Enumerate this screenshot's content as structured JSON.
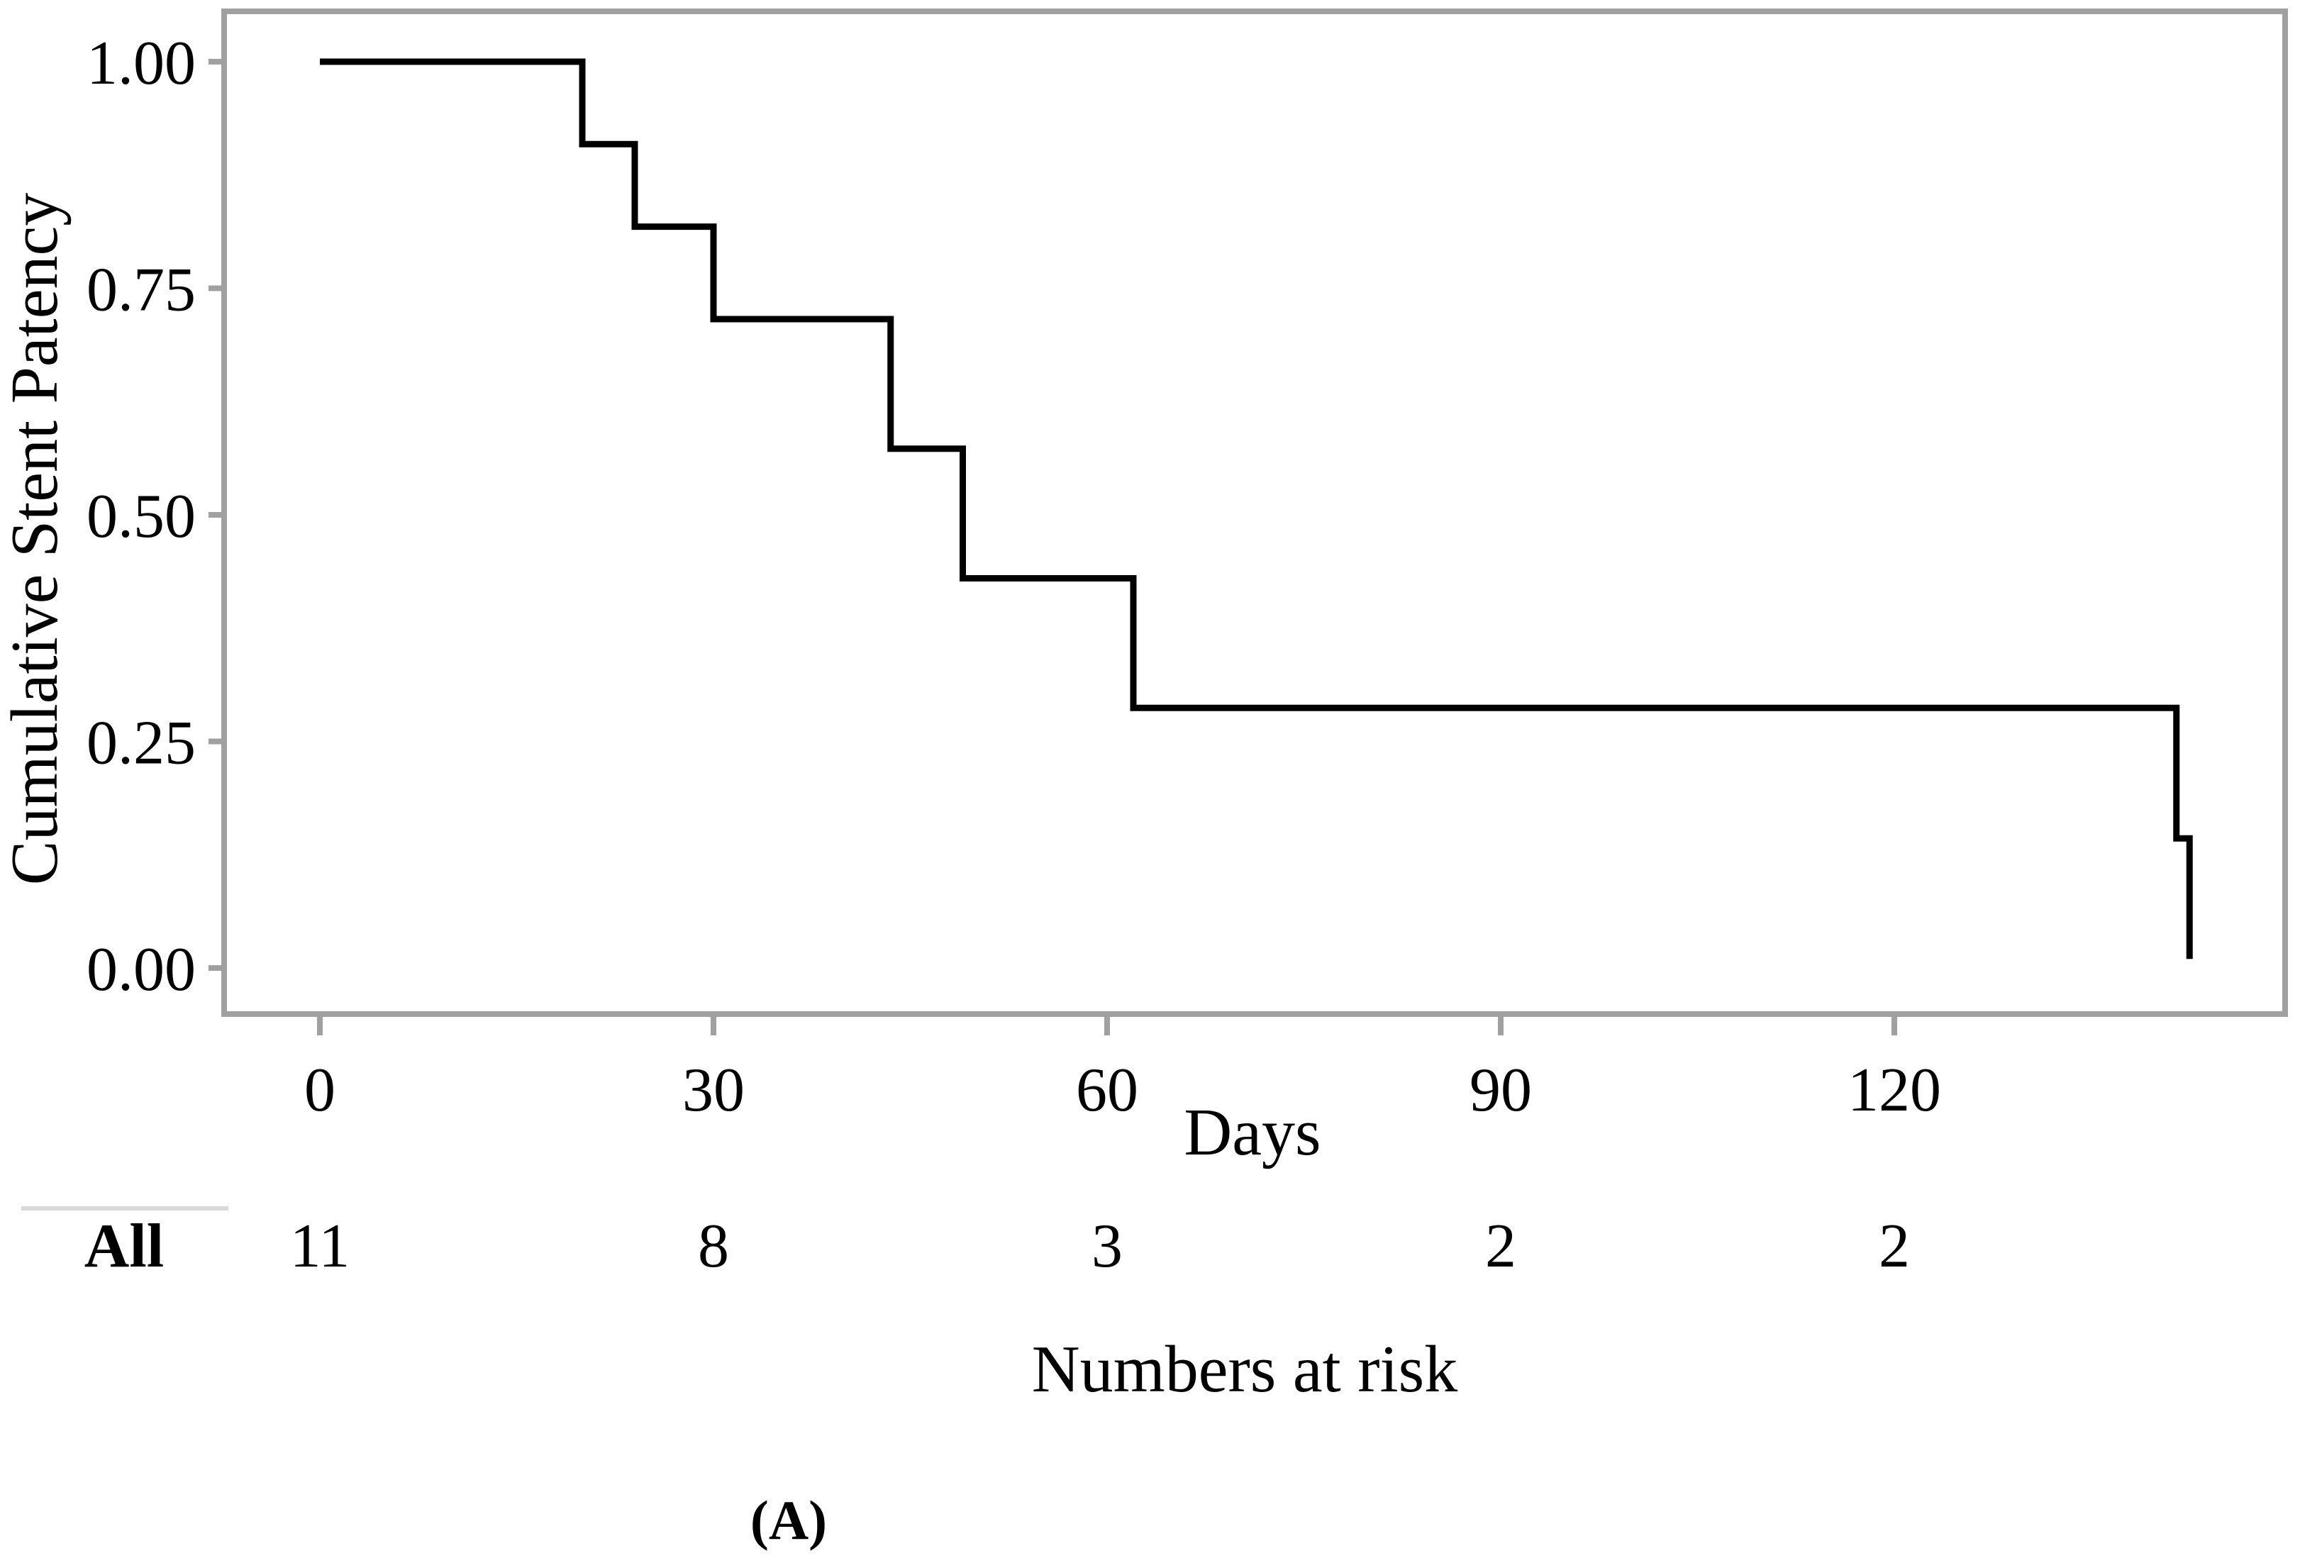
{
  "chart_data": {
    "type": "line",
    "subtype": "kaplan-meier-step",
    "title": "",
    "xlabel": "Days",
    "ylabel": "Cumulative Stent Patency",
    "xticks": [
      0,
      30,
      60,
      90,
      120
    ],
    "yticks": [
      1.0,
      0.75,
      0.5,
      0.25,
      0.0
    ],
    "xlim": [
      -7.3,
      149.8
    ],
    "ylim": [
      -0.05,
      1.06
    ],
    "grid": false,
    "legend_position": "none",
    "series": [
      {
        "name": "All",
        "color": "#000000",
        "step_points": [
          [
            0,
            1.0
          ],
          [
            20,
            1.0
          ],
          [
            20,
            0.909
          ],
          [
            24,
            0.909
          ],
          [
            24,
            0.818
          ],
          [
            30,
            0.818
          ],
          [
            30,
            0.716
          ],
          [
            43.5,
            0.716
          ],
          [
            43.5,
            0.573
          ],
          [
            49,
            0.573
          ],
          [
            49,
            0.43
          ],
          [
            62,
            0.43
          ],
          [
            62,
            0.287
          ],
          [
            141.5,
            0.287
          ],
          [
            141.5,
            0.143
          ],
          [
            142.5,
            0.143
          ],
          [
            142.5,
            0.01
          ]
        ]
      }
    ],
    "risk_table": {
      "row_label": "All",
      "times": [
        0,
        30,
        60,
        90,
        120
      ],
      "counts": [
        "11",
        "8",
        "3",
        "2",
        "2"
      ]
    },
    "risk_table_caption": "Numbers at risk",
    "panel_label": "(A)"
  },
  "labels": {
    "xlabel": "Days",
    "ylabel": "Cumulative Stent Patency",
    "risk_row_label": "All",
    "risk_caption": "Numbers at risk",
    "panel": "(A)"
  },
  "colors": {
    "curve": "#000000",
    "frame": "#a0a0a0",
    "tick": "#a0a0a0",
    "text": "#000000",
    "risk_rule": "#d9d9d9",
    "background": "#ffffff"
  }
}
